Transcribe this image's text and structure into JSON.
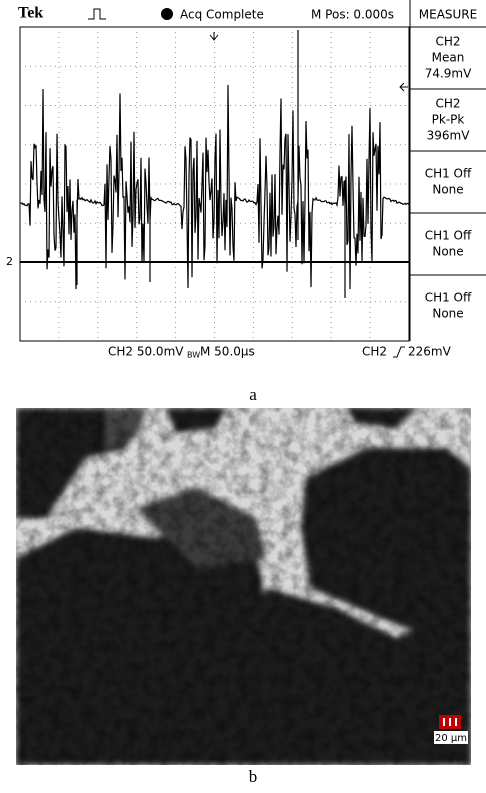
{
  "scope": {
    "brand": "Tek",
    "status": "Acq Complete",
    "position": "M Pos: 0.000s",
    "channel_marker": "2",
    "menu": {
      "title": "MEASURE",
      "items": [
        [
          "CH2",
          "Mean",
          "74.9mV"
        ],
        [
          "CH2",
          "Pk-Pk",
          "396mV"
        ],
        [
          "CH1 Off",
          "None"
        ],
        [
          "CH1 Off",
          "None"
        ],
        [
          "CH1 Off",
          "None"
        ]
      ]
    },
    "footer": {
      "scale": "CH2  50.0mV",
      "bandwidth": "BW",
      "timebase": "M 50.0µs",
      "trigger_channel": "CH2",
      "trigger_level": "226mV"
    }
  },
  "labels": {
    "a": "a",
    "b": "b"
  },
  "micrograph": {
    "scale_bar": "20 µm"
  }
}
